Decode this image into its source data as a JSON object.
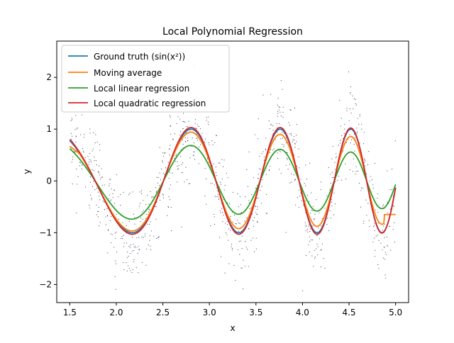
{
  "chart_data": {
    "type": "line",
    "title": "Local Polynomial Regression",
    "xlabel": "x",
    "ylabel": "y",
    "xlim": [
      1.36,
      5.14
    ],
    "ylim": [
      -2.35,
      2.7
    ],
    "xticks": [
      1.5,
      2.0,
      2.5,
      3.0,
      3.5,
      4.0,
      4.5,
      5.0
    ],
    "xtick_labels": [
      "1.5",
      "2.0",
      "2.5",
      "3.0",
      "3.5",
      "4.0",
      "4.5",
      "5.0"
    ],
    "yticks": [
      -2,
      -1,
      0,
      1,
      2
    ],
    "ytick_labels": [
      "−2",
      "−1",
      "0",
      "1",
      "2"
    ],
    "legend_placement": "upper-left",
    "grid": false,
    "scatter": {
      "description": "noisy samples of sin(x^2) with noise (~1000 points)",
      "x_range": [
        1.5,
        5.0
      ],
      "count": 1000,
      "color": "#1f1f3f"
    },
    "series": [
      {
        "name": "Ground truth",
        "name_math": "(sin(x²))",
        "color": "#1f77b4",
        "kind": "exact"
      },
      {
        "name": "Moving average",
        "color": "#ff7f0e",
        "kind": "moving"
      },
      {
        "name": "Local linear regression",
        "color": "#2ca02c",
        "kind": "linear"
      },
      {
        "name": "Local quadratic regression",
        "color": "#d62728",
        "kind": "quadratic"
      }
    ]
  }
}
